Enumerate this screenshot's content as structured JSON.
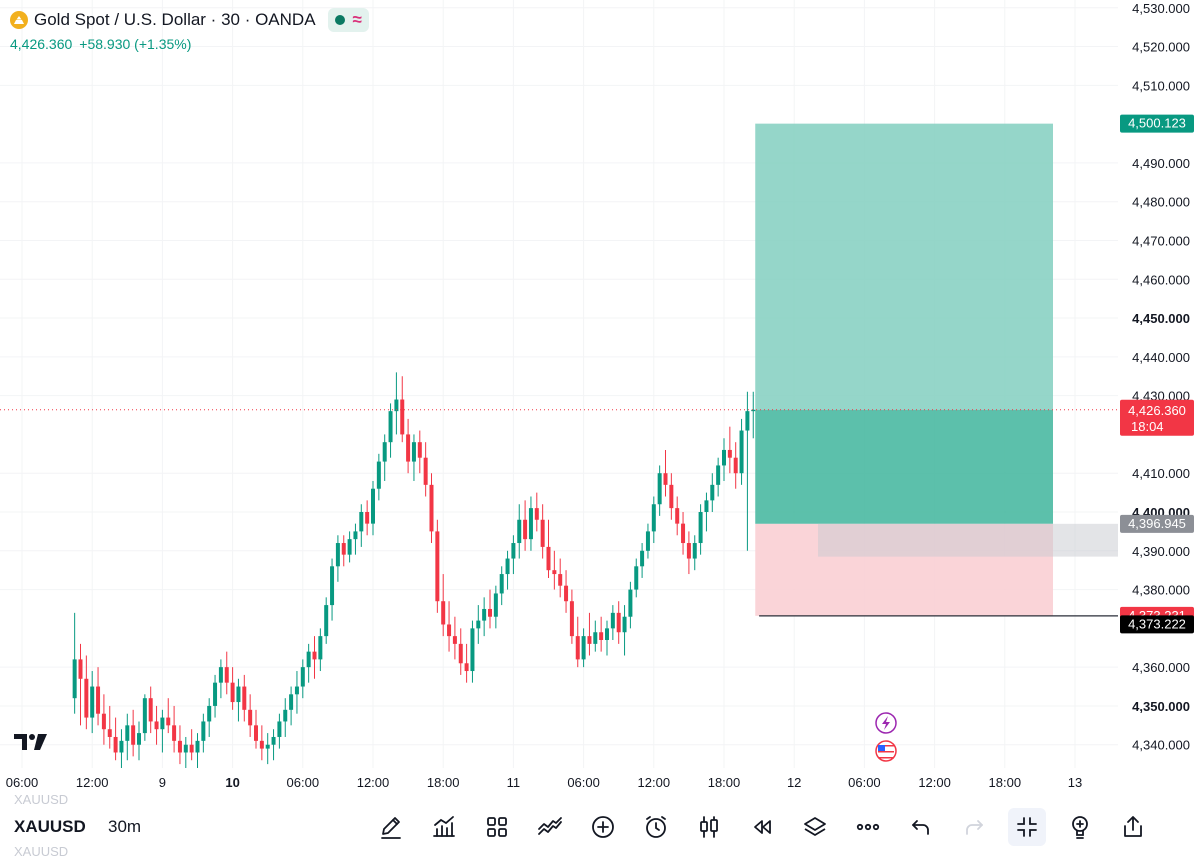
{
  "header": {
    "title": "Gold Spot / U.S. Dollar · 30 · OANDA",
    "price": "4,426.360",
    "change": "+58.930 (+1.35%)"
  },
  "colors": {
    "up": "#089981",
    "down": "#f23645",
    "profit_zone": "#82cfbf",
    "loss_zone": "#f9cfd4"
  },
  "chart_data": {
    "type": "candlestick",
    "symbol": "XAUUSD",
    "interval": "30m",
    "ylim": [
      4334,
      4532
    ],
    "y_ticks": [
      {
        "value": 4530,
        "label": "4,530.000",
        "bold": false
      },
      {
        "value": 4520,
        "label": "4,520.000",
        "bold": false
      },
      {
        "value": 4510,
        "label": "4,510.000",
        "bold": false
      },
      {
        "value": 4490,
        "label": "4,490.000",
        "bold": false
      },
      {
        "value": 4480,
        "label": "4,480.000",
        "bold": false
      },
      {
        "value": 4470,
        "label": "4,470.000",
        "bold": false
      },
      {
        "value": 4460,
        "label": "4,460.000",
        "bold": false
      },
      {
        "value": 4450,
        "label": "4,450.000",
        "bold": true
      },
      {
        "value": 4440,
        "label": "4,440.000",
        "bold": false
      },
      {
        "value": 4430,
        "label": "4,430.000",
        "bold": false
      },
      {
        "value": 4410,
        "label": "4,410.000",
        "bold": false
      },
      {
        "value": 4400,
        "label": "4,400.000",
        "bold": true
      },
      {
        "value": 4390,
        "label": "4,390.000",
        "bold": false
      },
      {
        "value": 4380,
        "label": "4,380.000",
        "bold": false
      },
      {
        "value": 4360,
        "label": "4,360.000",
        "bold": false
      },
      {
        "value": 4350,
        "label": "4,350.000",
        "bold": true
      },
      {
        "value": 4340,
        "label": "4,340.000",
        "bold": false
      }
    ],
    "x_ticks": [
      {
        "bar": 0,
        "label": "06:00",
        "bold": false
      },
      {
        "bar": 12,
        "label": "12:00",
        "bold": false
      },
      {
        "bar": 24,
        "label": "9",
        "bold": false
      },
      {
        "bar": 36,
        "label": "10",
        "bold": true
      },
      {
        "bar": 48,
        "label": "06:00",
        "bold": false
      },
      {
        "bar": 60,
        "label": "12:00",
        "bold": false
      },
      {
        "bar": 72,
        "label": "18:00",
        "bold": false
      },
      {
        "bar": 84,
        "label": "11",
        "bold": false
      },
      {
        "bar": 96,
        "label": "06:00",
        "bold": false
      },
      {
        "bar": 108,
        "label": "12:00",
        "bold": false
      },
      {
        "bar": 120,
        "label": "18:00",
        "bold": false
      },
      {
        "bar": 132,
        "label": "12",
        "bold": false
      },
      {
        "bar": 144,
        "label": "06:00",
        "bold": false
      },
      {
        "bar": 156,
        "label": "12:00",
        "bold": false
      },
      {
        "bar": 168,
        "label": "18:00",
        "bold": false
      },
      {
        "bar": 180,
        "label": "13",
        "bold": false
      }
    ],
    "candles_start_bar": 9,
    "candles": [
      [
        4352,
        4374,
        4348,
        4362
      ],
      [
        4362,
        4366,
        4345,
        4357
      ],
      [
        4357,
        4363,
        4344,
        4347
      ],
      [
        4347,
        4359,
        4343,
        4355
      ],
      [
        4355,
        4360,
        4345,
        4348
      ],
      [
        4348,
        4353,
        4340,
        4344
      ],
      [
        4344,
        4350,
        4339,
        4342
      ],
      [
        4342,
        4347,
        4336,
        4338
      ],
      [
        4338,
        4344,
        4334,
        4341
      ],
      [
        4341,
        4348,
        4336,
        4345
      ],
      [
        4345,
        4349,
        4337,
        4340
      ],
      [
        4340,
        4346,
        4336,
        4343
      ],
      [
        4343,
        4353,
        4341,
        4352
      ],
      [
        4352,
        4355,
        4343,
        4346
      ],
      [
        4346,
        4350,
        4340,
        4344
      ],
      [
        4344,
        4349,
        4338,
        4347
      ],
      [
        4347,
        4352,
        4343,
        4345
      ],
      [
        4345,
        4350,
        4338,
        4341
      ],
      [
        4341,
        4345,
        4335,
        4338
      ],
      [
        4338,
        4342,
        4334,
        4340
      ],
      [
        4340,
        4344,
        4336,
        4338
      ],
      [
        4338,
        4343,
        4334,
        4341
      ],
      [
        4341,
        4348,
        4338,
        4346
      ],
      [
        4346,
        4352,
        4342,
        4350
      ],
      [
        4350,
        4358,
        4347,
        4356
      ],
      [
        4356,
        4362,
        4352,
        4360
      ],
      [
        4360,
        4364,
        4353,
        4356
      ],
      [
        4356,
        4360,
        4349,
        4351
      ],
      [
        4351,
        4357,
        4346,
        4355
      ],
      [
        4355,
        4358,
        4346,
        4349
      ],
      [
        4349,
        4353,
        4342,
        4345
      ],
      [
        4345,
        4349,
        4339,
        4341
      ],
      [
        4341,
        4345,
        4336,
        4339
      ],
      [
        4339,
        4343,
        4335,
        4340
      ],
      [
        4340,
        4344,
        4336,
        4342
      ],
      [
        4342,
        4348,
        4339,
        4346
      ],
      [
        4346,
        4352,
        4342,
        4349
      ],
      [
        4349,
        4355,
        4345,
        4353
      ],
      [
        4353,
        4359,
        4348,
        4355
      ],
      [
        4355,
        4362,
        4352,
        4360
      ],
      [
        4360,
        4366,
        4356,
        4364
      ],
      [
        4364,
        4368,
        4357,
        4362
      ],
      [
        4362,
        4370,
        4359,
        4368
      ],
      [
        4368,
        4378,
        4366,
        4376
      ],
      [
        4376,
        4388,
        4372,
        4386
      ],
      [
        4386,
        4394,
        4382,
        4392
      ],
      [
        4392,
        4394,
        4386,
        4389
      ],
      [
        4389,
        4395,
        4387,
        4393
      ],
      [
        4393,
        4397,
        4389,
        4395
      ],
      [
        4395,
        4402,
        4391,
        4400
      ],
      [
        4400,
        4403,
        4394,
        4397
      ],
      [
        4397,
        4408,
        4394,
        4406
      ],
      [
        4406,
        4415,
        4403,
        4413
      ],
      [
        4413,
        4420,
        4408,
        4418
      ],
      [
        4418,
        4428,
        4414,
        4426
      ],
      [
        4426,
        4436,
        4420,
        4429
      ],
      [
        4429,
        4435,
        4418,
        4420
      ],
      [
        4420,
        4424,
        4410,
        4413
      ],
      [
        4413,
        4420,
        4408,
        4418
      ],
      [
        4418,
        4421,
        4410,
        4414
      ],
      [
        4414,
        4418,
        4404,
        4407
      ],
      [
        4407,
        4410,
        4392,
        4395
      ],
      [
        4395,
        4398,
        4374,
        4377
      ],
      [
        4377,
        4384,
        4368,
        4371
      ],
      [
        4371,
        4377,
        4364,
        4368
      ],
      [
        4368,
        4373,
        4362,
        4366
      ],
      [
        4366,
        4370,
        4358,
        4361
      ],
      [
        4361,
        4366,
        4356,
        4359
      ],
      [
        4359,
        4372,
        4356,
        4370
      ],
      [
        4370,
        4376,
        4366,
        4372
      ],
      [
        4372,
        4378,
        4368,
        4375
      ],
      [
        4375,
        4380,
        4370,
        4373
      ],
      [
        4373,
        4381,
        4370,
        4379
      ],
      [
        4379,
        4386,
        4376,
        4384
      ],
      [
        4384,
        4390,
        4380,
        4388
      ],
      [
        4388,
        4394,
        4384,
        4392
      ],
      [
        4392,
        4402,
        4388,
        4398
      ],
      [
        4398,
        4403,
        4390,
        4393
      ],
      [
        4393,
        4404,
        4390,
        4401
      ],
      [
        4401,
        4405,
        4395,
        4398
      ],
      [
        4398,
        4402,
        4388,
        4391
      ],
      [
        4391,
        4398,
        4383,
        4385
      ],
      [
        4385,
        4390,
        4380,
        4384
      ],
      [
        4384,
        4388,
        4378,
        4381
      ],
      [
        4381,
        4385,
        4374,
        4377
      ],
      [
        4377,
        4380,
        4366,
        4368
      ],
      [
        4368,
        4373,
        4360,
        4362
      ],
      [
        4362,
        4370,
        4360,
        4368
      ],
      [
        4368,
        4374,
        4363,
        4366
      ],
      [
        4366,
        4372,
        4364,
        4369
      ],
      [
        4369,
        4373,
        4364,
        4367
      ],
      [
        4367,
        4372,
        4363,
        4370
      ],
      [
        4370,
        4376,
        4367,
        4374
      ],
      [
        4374,
        4377,
        4366,
        4369
      ],
      [
        4369,
        4376,
        4363,
        4373
      ],
      [
        4373,
        4382,
        4370,
        4380
      ],
      [
        4380,
        4388,
        4378,
        4386
      ],
      [
        4386,
        4392,
        4383,
        4390
      ],
      [
        4390,
        4397,
        4388,
        4395
      ],
      [
        4395,
        4404,
        4392,
        4402
      ],
      [
        4402,
        4412,
        4399,
        4410
      ],
      [
        4410,
        4416,
        4404,
        4407
      ],
      [
        4407,
        4410,
        4398,
        4401
      ],
      [
        4401,
        4404,
        4394,
        4397
      ],
      [
        4397,
        4400,
        4389,
        4392
      ],
      [
        4392,
        4395,
        4384,
        4388
      ],
      [
        4388,
        4394,
        4385,
        4392
      ],
      [
        4392,
        4402,
        4389,
        4400
      ],
      [
        4400,
        4405,
        4395,
        4403
      ],
      [
        4403,
        4410,
        4400,
        4407
      ],
      [
        4407,
        4414,
        4404,
        4412
      ],
      [
        4412,
        4419,
        4408,
        4416
      ],
      [
        4416,
        4422,
        4410,
        4414
      ],
      [
        4414,
        4418,
        4406,
        4410
      ],
      [
        4410,
        4424,
        4407,
        4421
      ],
      [
        4421,
        4431,
        4390,
        4426
      ],
      [
        4426,
        4431,
        4419,
        4426.36
      ]
    ],
    "current_price": {
      "value": 4426.36,
      "label": "4,426.360",
      "countdown": "18:04"
    },
    "position": {
      "entry": 4396.945,
      "entry_label": "4,396.945",
      "target": 4500.123,
      "target_label": "4,500.123",
      "stop": 4373.231,
      "stop_label": "4,373.231"
    },
    "horizontal_line": {
      "value": 4373.222,
      "label": "4,373.222",
      "start_bar": 126
    },
    "event_markers": [
      "lightning-bolt-icon",
      "us-flag-icon"
    ]
  },
  "toolbar": {
    "symbol": "XAUUSD",
    "symbol_ghost_top": "XAUUSD",
    "symbol_ghost_bottom": "XAUUSD",
    "interval": "30m",
    "icons": [
      "pencil-icon",
      "indicators-icon",
      "layouts-grid-icon",
      "strategy-icon",
      "add-circle-icon",
      "alarm-clock-icon",
      "candles-icon",
      "replay-icon",
      "layers-icon",
      "more-icon",
      "undo-icon",
      "redo-icon",
      "exit-fullscreen-icon",
      "lightbulb-icon",
      "share-icon"
    ]
  }
}
